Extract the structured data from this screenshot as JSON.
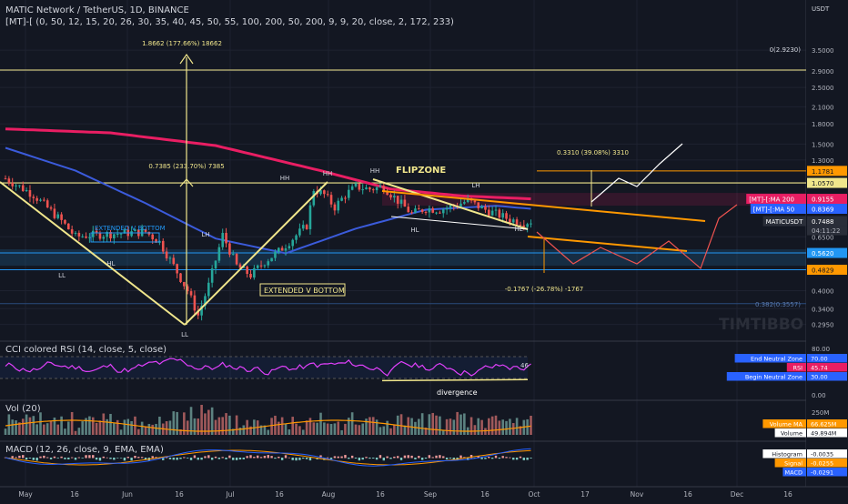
{
  "header": {
    "title": "MATIC Network / TetherUS, 1D, BINANCE",
    "indicator": "[MT]-[ (0, 50, 12, 15, 20, 26, 30, 35, 40, 45, 50, 55, 100, 200, 50, 200, 9, 9, 20, close, 2, 172, 233)"
  },
  "price_axis": {
    "currency": "USDT",
    "ticks": [
      {
        "v": 3.5,
        "t": "3.5000"
      },
      {
        "v": 2.9,
        "t": "2.9000"
      },
      {
        "v": 2.5,
        "t": "2.5000"
      },
      {
        "v": 2.1,
        "t": "2.1000"
      },
      {
        "v": 1.8,
        "t": "1.8000"
      },
      {
        "v": 1.5,
        "t": "1.5000"
      },
      {
        "v": 1.3,
        "t": "1.3000"
      },
      {
        "v": 0.65,
        "t": "0.6500"
      },
      {
        "v": 0.4,
        "t": "0.4000"
      },
      {
        "v": 0.34,
        "t": "0.3400"
      },
      {
        "v": 0.295,
        "t": "0.2950"
      }
    ],
    "badges": [
      {
        "v": 1.1781,
        "t": "1.1781",
        "bg": "#ff9800",
        "fg": "#131722"
      },
      {
        "v": 1.057,
        "t": "1.0570",
        "bg": "#f0e68c",
        "fg": "#131722"
      },
      {
        "v": 0.9155,
        "t": "0.9155",
        "bg": "#e91e63",
        "fg": "#ffffff",
        "label": "[MT]-[:MA 200"
      },
      {
        "v": 0.8369,
        "t": "0.8369",
        "bg": "#2962ff",
        "fg": "#ffffff",
        "label": "[MT]-[:MA 50"
      },
      {
        "v": 0.7488,
        "t": "0.7488",
        "bg": "#2a2e39",
        "fg": "#ffffff",
        "label": "MATICUSDT",
        "sub": "04:11:22"
      },
      {
        "v": 0.562,
        "t": "0.5620",
        "bg": "#2196f3",
        "fg": "#ffffff"
      },
      {
        "v": 0.4829,
        "t": "0.4829",
        "bg": "#ff9800",
        "fg": "#131722"
      }
    ]
  },
  "annotations": {
    "top_measure": "1.8662 (177.66%) 18662",
    "mid_measure": "0.7385 (233.70%) 7385",
    "right_measure": "0.3310 (39.08%) 3310",
    "down_measure": "-0.1767 (-26.78%) -1767",
    "fib_top": "0(2.9230)",
    "fib_low": "0.382(0.3557)",
    "flipzone": "FLIPZONE",
    "ext_v_bottom_1": "EXTENDED V BOTTOM",
    "ext_v_bottom_2": "EXTENDED V BOTTOM",
    "divergence": "divergence",
    "watermark": "TIMTIBBO",
    "pivots": [
      "LL",
      "HL",
      "LL",
      "LH",
      "HH",
      "HH",
      "HH",
      "HL",
      "LH",
      "HL"
    ]
  },
  "rsi_pane": {
    "title": "CCI colored RSI (14, close, 5, close)",
    "ticks": [
      "80.00",
      "0.00"
    ],
    "badges": [
      {
        "label": "End Neutral Zone",
        "value": "70.00",
        "bg": "#2962ff"
      },
      {
        "label": "RSI",
        "value": "45.74",
        "bg": "#e91e63"
      },
      {
        "label": "Begin Neutral Zone",
        "value": "30.00",
        "bg": "#2962ff"
      }
    ],
    "rsi_end_label": "46"
  },
  "vol_pane": {
    "title": "Vol (20)",
    "ticks": [
      "250M",
      "0"
    ],
    "badges": [
      {
        "label": "Volume MA",
        "value": "66.625M",
        "bg": "#ff9800"
      },
      {
        "label": "Volume",
        "value": "49.894M",
        "bg": "#ffffff"
      }
    ]
  },
  "macd_pane": {
    "title": "MACD (12, 26, close, 9, EMA, EMA)",
    "badges": [
      {
        "label": "Histogram",
        "value": "-0.0035",
        "bg": "#ffffff"
      },
      {
        "label": "Signal",
        "value": "-0.0255",
        "bg": "#ff9800"
      },
      {
        "label": "MACD",
        "value": "-0.0291",
        "bg": "#2962ff"
      }
    ]
  },
  "time_axis": [
    "May",
    "16",
    "Jun",
    "16",
    "Jul",
    "16",
    "Aug",
    "16",
    "Sep",
    "16",
    "Oct",
    "17",
    "Nov",
    "16",
    "Dec",
    "16"
  ],
  "chart_data": {
    "type": "candlestick",
    "title": "MATIC Network / TetherUS, 1D, BINANCE",
    "y_scale": "log",
    "ylim": [
      0.26,
      4.3
    ],
    "y_ticks": [
      3.5,
      2.9,
      2.5,
      2.1,
      1.8,
      1.5,
      1.3,
      0.65,
      0.4,
      0.34,
      0.295
    ],
    "x_labels": [
      "May",
      "16",
      "Jun",
      "16",
      "Jul",
      "16",
      "Aug",
      "16",
      "Sep",
      "16",
      "Oct",
      "17",
      "Nov",
      "16",
      "Dec",
      "16"
    ],
    "last_price": 0.7488,
    "price_path": [
      [
        0,
        1.1
      ],
      [
        8,
        0.95
      ],
      [
        16,
        0.75
      ],
      [
        20,
        0.65
      ],
      [
        24,
        0.66
      ],
      [
        32,
        0.67
      ],
      [
        40,
        0.68
      ],
      [
        44,
        0.62
      ],
      [
        48,
        0.5
      ],
      [
        52,
        0.4
      ],
      [
        55,
        0.32
      ],
      [
        58,
        0.42
      ],
      [
        62,
        0.66
      ],
      [
        66,
        0.5
      ],
      [
        70,
        0.46
      ],
      [
        74,
        0.52
      ],
      [
        78,
        0.57
      ],
      [
        82,
        0.64
      ],
      [
        86,
        0.72
      ],
      [
        88,
        1.0
      ],
      [
        91,
        0.95
      ],
      [
        94,
        0.85
      ],
      [
        97,
        0.95
      ],
      [
        100,
        1.02
      ],
      [
        104,
        1.0
      ],
      [
        108,
        1.02
      ],
      [
        112,
        0.9
      ],
      [
        116,
        0.8
      ],
      [
        120,
        0.84
      ],
      [
        124,
        0.83
      ],
      [
        128,
        0.86
      ],
      [
        132,
        0.9
      ],
      [
        136,
        0.84
      ],
      [
        140,
        0.8
      ],
      [
        144,
        0.76
      ],
      [
        148,
        0.74
      ],
      [
        150,
        0.7488
      ]
    ],
    "ma200_path": [
      [
        0,
        1.72
      ],
      [
        30,
        1.66
      ],
      [
        60,
        1.48
      ],
      [
        90,
        1.18
      ],
      [
        110,
        1.0
      ],
      [
        130,
        0.94
      ],
      [
        150,
        0.9155
      ]
    ],
    "ma50_path": [
      [
        0,
        1.45
      ],
      [
        20,
        1.18
      ],
      [
        40,
        0.88
      ],
      [
        60,
        0.64
      ],
      [
        80,
        0.56
      ],
      [
        100,
        0.7
      ],
      [
        120,
        0.83
      ],
      [
        140,
        0.86
      ],
      [
        150,
        0.8369
      ]
    ],
    "levels": {
      "resistance_1": 1.1781,
      "resistance_2": 1.057,
      "support_1": 0.562,
      "support_2": 0.4829
    }
  }
}
